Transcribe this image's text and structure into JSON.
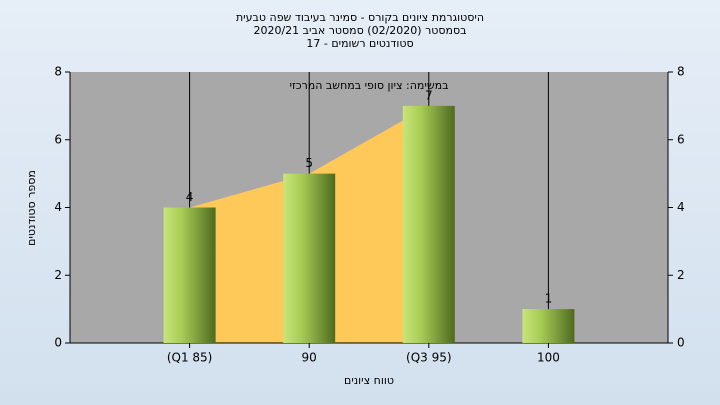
{
  "chart_data": {
    "type": "bar",
    "title": [
      "היסטוגרמת ציונים בקורס - סמינר בעיבוד שפה טבעית",
      "בסמסטר  (02/2020)  סמסטר אביב 2020/21",
      "סטודנטים רשומים - 17"
    ],
    "subtitle": "במשימה: ציון סופי במחשב המרכזי",
    "x_label": "טווח ציונים",
    "y_label": "מספר סטודנטים",
    "categories": [
      "(Q1 85)",
      "90",
      "(Q3 95)",
      "100"
    ],
    "values": [
      4,
      5,
      7,
      1
    ],
    "color": "#8db33a",
    "area_color": "#ffc95a",
    "background": "#a8a8a8",
    "ylim": [
      0,
      8
    ],
    "yticks": [
      0,
      2,
      4,
      6,
      8
    ],
    "y2lim": [
      0,
      8
    ],
    "y2ticks": [
      0,
      2,
      4,
      6,
      8
    ]
  }
}
